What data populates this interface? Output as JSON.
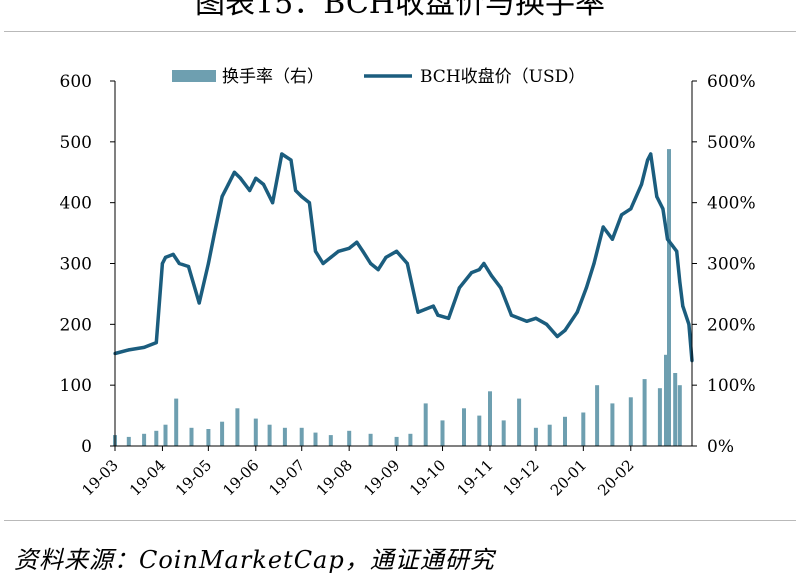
{
  "chart_data": {
    "type": "line",
    "title": "图表15：BCH收盘价与换手率",
    "source": "资料来源：CoinMarketCap，通证通研究",
    "x_labels": [
      "19-03",
      "19-04",
      "19-05",
      "19-06",
      "19-07",
      "19-08",
      "19-09",
      "19-10",
      "19-11",
      "19-12",
      "20-01",
      "20-02"
    ],
    "y_left": {
      "ylim": [
        0,
        600
      ],
      "ticks": [
        "0",
        "100",
        "200",
        "300",
        "400",
        "500",
        "600"
      ]
    },
    "y_right": {
      "ylim": [
        0,
        600
      ],
      "unit": "%",
      "ticks": [
        "0%",
        "100%",
        "200%",
        "300%",
        "400%",
        "500%",
        "600%"
      ]
    },
    "legend_position": "top",
    "series": [
      {
        "name": "换手率（右）",
        "type": "bar",
        "axis": "right",
        "color": "#6e9fb0",
        "x": [
          "19-03-01",
          "19-03-10",
          "19-03-20",
          "19-03-28",
          "19-04-03",
          "19-04-10",
          "19-04-20",
          "19-05-01",
          "19-05-10",
          "19-05-20",
          "19-06-01",
          "19-06-10",
          "19-06-20",
          "19-07-01",
          "19-07-10",
          "19-07-20",
          "19-08-01",
          "19-08-15",
          "19-09-01",
          "19-09-10",
          "19-09-20",
          "19-10-01",
          "19-10-15",
          "19-10-25",
          "19-11-01",
          "19-11-10",
          "19-11-20",
          "19-12-01",
          "19-12-10",
          "19-12-20",
          "20-01-01",
          "20-01-10",
          "20-01-20",
          "20-02-01",
          "20-02-10",
          "20-02-20",
          "20-02-24",
          "20-02-26",
          "20-03-01",
          "20-03-04"
        ],
        "values": [
          18,
          15,
          20,
          25,
          35,
          78,
          30,
          28,
          40,
          62,
          45,
          35,
          30,
          30,
          22,
          18,
          25,
          20,
          15,
          20,
          70,
          42,
          62,
          50,
          90,
          42,
          78,
          30,
          35,
          48,
          55,
          100,
          70,
          80,
          110,
          95,
          150,
          488,
          120,
          100
        ]
      },
      {
        "name": "BCH收盘价（USD）",
        "type": "line",
        "axis": "left",
        "color": "#1b5d7e",
        "x": [
          "19-03-01",
          "19-03-10",
          "19-03-20",
          "19-03-28",
          "19-04-01",
          "19-04-03",
          "19-04-08",
          "19-04-12",
          "19-04-18",
          "19-04-25",
          "19-05-01",
          "19-05-05",
          "19-05-10",
          "19-05-14",
          "19-05-18",
          "19-05-22",
          "19-05-28",
          "19-06-01",
          "19-06-06",
          "19-06-12",
          "19-06-18",
          "19-06-24",
          "19-06-27",
          "19-07-01",
          "19-07-06",
          "19-07-10",
          "19-07-15",
          "19-07-20",
          "19-07-25",
          "19-08-01",
          "19-08-06",
          "19-08-10",
          "19-08-15",
          "19-08-20",
          "19-08-25",
          "19-09-01",
          "19-09-08",
          "19-09-15",
          "19-09-20",
          "19-09-25",
          "19-09-28",
          "19-10-05",
          "19-10-12",
          "19-10-20",
          "19-10-25",
          "19-10-28",
          "19-11-02",
          "19-11-08",
          "19-11-15",
          "19-11-20",
          "19-11-25",
          "19-12-01",
          "19-12-08",
          "19-12-15",
          "19-12-20",
          "19-12-28",
          "20-01-03",
          "20-01-08",
          "20-01-14",
          "20-01-20",
          "20-01-26",
          "20-02-01",
          "20-02-08",
          "20-02-12",
          "20-02-14",
          "20-02-18",
          "20-02-22",
          "20-02-25",
          "20-02-28",
          "20-03-02",
          "20-03-04",
          "20-03-06",
          "20-03-10",
          "20-03-12"
        ],
        "values": [
          152,
          158,
          162,
          170,
          300,
          310,
          315,
          300,
          295,
          235,
          300,
          350,
          410,
          430,
          450,
          440,
          420,
          440,
          430,
          400,
          480,
          470,
          420,
          410,
          400,
          320,
          300,
          310,
          320,
          325,
          335,
          320,
          300,
          290,
          310,
          320,
          300,
          220,
          225,
          230,
          215,
          210,
          260,
          285,
          290,
          300,
          280,
          260,
          215,
          210,
          205,
          210,
          200,
          180,
          190,
          220,
          260,
          300,
          360,
          340,
          380,
          390,
          430,
          470,
          480,
          410,
          390,
          340,
          330,
          320,
          270,
          230,
          200,
          140
        ]
      }
    ]
  }
}
